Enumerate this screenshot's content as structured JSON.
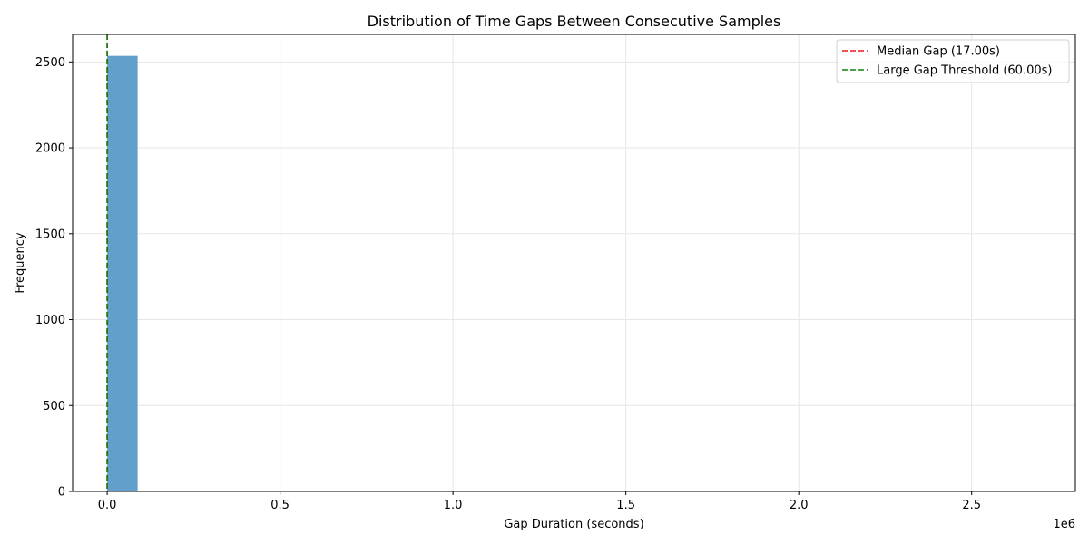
{
  "chart_data": {
    "type": "bar",
    "title": "Distribution of Time Gaps Between Consecutive Samples",
    "xlabel": "Gap Duration (seconds)",
    "ylabel": "Frequency",
    "x_offset_label": "1e6",
    "xlim": [
      -100000,
      2800000
    ],
    "ylim": [
      0,
      2660
    ],
    "x_ticks": [
      0,
      500000,
      1000000,
      1500000,
      2000000,
      2500000
    ],
    "x_tick_labels": [
      "0.0",
      "0.5",
      "1.0",
      "1.5",
      "2.0",
      "2.5"
    ],
    "y_ticks": [
      0,
      500,
      1000,
      1500,
      2000,
      2500
    ],
    "y_tick_labels": [
      "0",
      "500",
      "1000",
      "1500",
      "2000",
      "2500"
    ],
    "grid": true,
    "legend_position": "top-right",
    "bins": [
      {
        "start": 0,
        "end": 88000,
        "count": 2535
      }
    ],
    "bar_color": "#62a0cb",
    "reference_lines": [
      {
        "name": "Median Gap (17.00s)",
        "x": 17,
        "color": "#e8161b",
        "style": "dashed"
      },
      {
        "name": "Large Gap Threshold (60.00s)",
        "x": 60,
        "color": "#108010",
        "style": "dashed"
      }
    ]
  }
}
